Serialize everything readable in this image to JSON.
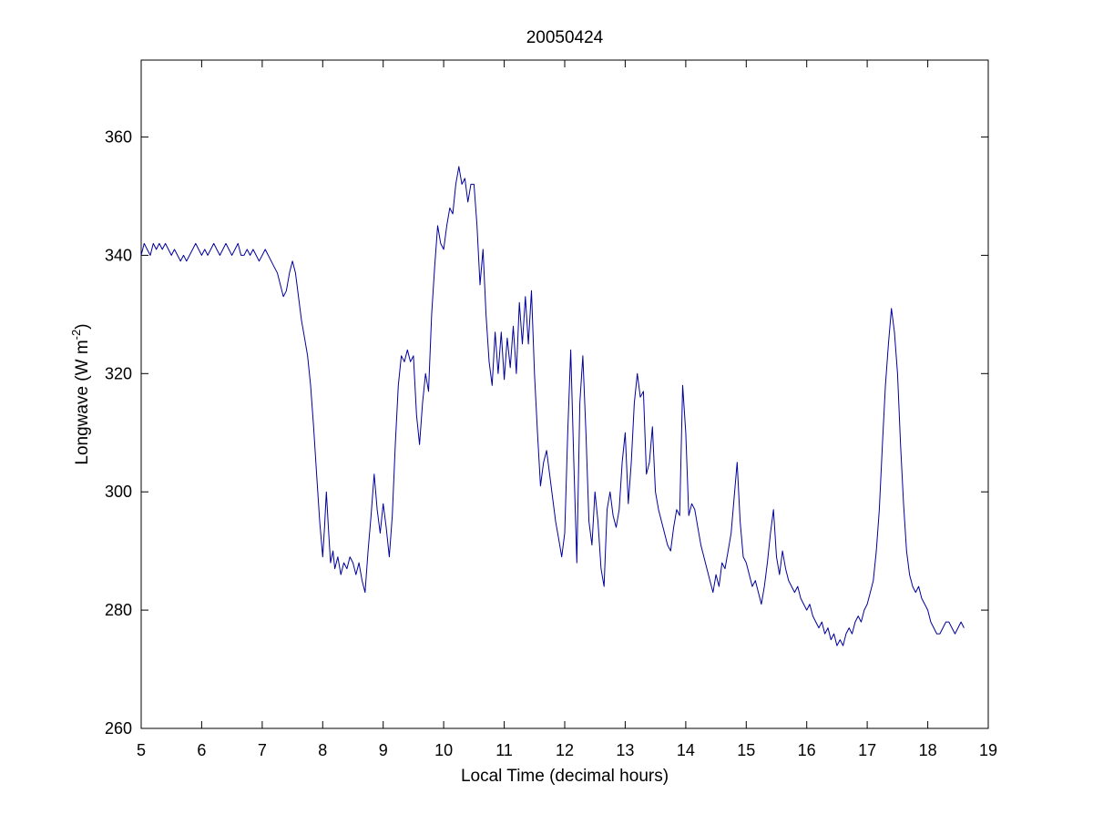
{
  "chart_data": {
    "type": "line",
    "title": "20050424",
    "xlabel": "Local Time (decimal hours)",
    "ylabel": "Longwave (W m-2)",
    "ylabel_parts": {
      "prefix": "Longwave (W m",
      "superscript": "-2",
      "suffix": ")"
    },
    "xlim": [
      5,
      19
    ],
    "ylim": [
      260,
      373
    ],
    "xticks": [
      5,
      6,
      7,
      8,
      9,
      10,
      11,
      12,
      13,
      14,
      15,
      16,
      17,
      18,
      19
    ],
    "yticks": [
      260,
      280,
      300,
      320,
      340,
      360
    ],
    "grid": false,
    "legend_position": "none",
    "line_color": "#00009C",
    "line_width": 1,
    "axis_color": "#000000",
    "background_color": "#ffffff",
    "series": [
      {
        "name": "longwave",
        "points": [
          [
            5.0,
            340
          ],
          [
            5.05,
            342
          ],
          [
            5.1,
            341
          ],
          [
            5.15,
            340
          ],
          [
            5.2,
            342
          ],
          [
            5.25,
            341
          ],
          [
            5.3,
            342
          ],
          [
            5.35,
            341
          ],
          [
            5.4,
            342
          ],
          [
            5.45,
            341
          ],
          [
            5.5,
            340
          ],
          [
            5.55,
            341
          ],
          [
            5.6,
            340
          ],
          [
            5.65,
            339
          ],
          [
            5.7,
            340
          ],
          [
            5.75,
            339
          ],
          [
            5.8,
            340
          ],
          [
            5.85,
            341
          ],
          [
            5.9,
            342
          ],
          [
            5.95,
            341
          ],
          [
            6.0,
            340
          ],
          [
            6.05,
            341
          ],
          [
            6.1,
            340
          ],
          [
            6.15,
            341
          ],
          [
            6.2,
            342
          ],
          [
            6.25,
            341
          ],
          [
            6.3,
            340
          ],
          [
            6.35,
            341
          ],
          [
            6.4,
            342
          ],
          [
            6.45,
            341
          ],
          [
            6.5,
            340
          ],
          [
            6.55,
            341
          ],
          [
            6.6,
            342
          ],
          [
            6.65,
            340
          ],
          [
            6.7,
            340
          ],
          [
            6.75,
            341
          ],
          [
            6.8,
            340
          ],
          [
            6.85,
            341
          ],
          [
            6.9,
            340
          ],
          [
            6.95,
            339
          ],
          [
            7.0,
            340
          ],
          [
            7.05,
            341
          ],
          [
            7.1,
            340
          ],
          [
            7.15,
            339
          ],
          [
            7.2,
            338
          ],
          [
            7.25,
            337
          ],
          [
            7.3,
            335
          ],
          [
            7.35,
            333
          ],
          [
            7.4,
            334
          ],
          [
            7.45,
            337
          ],
          [
            7.5,
            339
          ],
          [
            7.55,
            337
          ],
          [
            7.6,
            333
          ],
          [
            7.65,
            329
          ],
          [
            7.7,
            326
          ],
          [
            7.75,
            323
          ],
          [
            7.8,
            318
          ],
          [
            7.85,
            311
          ],
          [
            7.9,
            303
          ],
          [
            7.95,
            295
          ],
          [
            8.0,
            289
          ],
          [
            8.03,
            294
          ],
          [
            8.06,
            300
          ],
          [
            8.1,
            293
          ],
          [
            8.13,
            288
          ],
          [
            8.17,
            290
          ],
          [
            8.2,
            287
          ],
          [
            8.25,
            289
          ],
          [
            8.3,
            286
          ],
          [
            8.35,
            288
          ],
          [
            8.4,
            287
          ],
          [
            8.45,
            289
          ],
          [
            8.5,
            288
          ],
          [
            8.55,
            286
          ],
          [
            8.6,
            288
          ],
          [
            8.65,
            285
          ],
          [
            8.7,
            283
          ],
          [
            8.75,
            290
          ],
          [
            8.8,
            296
          ],
          [
            8.85,
            303
          ],
          [
            8.9,
            297
          ],
          [
            8.95,
            293
          ],
          [
            9.0,
            298
          ],
          [
            9.05,
            294
          ],
          [
            9.1,
            289
          ],
          [
            9.15,
            296
          ],
          [
            9.2,
            308
          ],
          [
            9.25,
            318
          ],
          [
            9.3,
            323
          ],
          [
            9.35,
            322
          ],
          [
            9.4,
            324
          ],
          [
            9.45,
            322
          ],
          [
            9.5,
            323
          ],
          [
            9.55,
            313
          ],
          [
            9.6,
            308
          ],
          [
            9.65,
            315
          ],
          [
            9.7,
            320
          ],
          [
            9.75,
            317
          ],
          [
            9.8,
            330
          ],
          [
            9.85,
            338
          ],
          [
            9.9,
            345
          ],
          [
            9.95,
            342
          ],
          [
            10.0,
            341
          ],
          [
            10.05,
            345
          ],
          [
            10.1,
            348
          ],
          [
            10.15,
            347
          ],
          [
            10.2,
            352
          ],
          [
            10.25,
            355
          ],
          [
            10.3,
            352
          ],
          [
            10.35,
            353
          ],
          [
            10.4,
            349
          ],
          [
            10.45,
            352
          ],
          [
            10.5,
            352
          ],
          [
            10.55,
            345
          ],
          [
            10.6,
            335
          ],
          [
            10.65,
            341
          ],
          [
            10.7,
            330
          ],
          [
            10.75,
            322
          ],
          [
            10.8,
            318
          ],
          [
            10.85,
            327
          ],
          [
            10.9,
            320
          ],
          [
            10.95,
            327
          ],
          [
            11.0,
            319
          ],
          [
            11.05,
            326
          ],
          [
            11.1,
            321
          ],
          [
            11.15,
            328
          ],
          [
            11.2,
            320
          ],
          [
            11.25,
            332
          ],
          [
            11.3,
            325
          ],
          [
            11.35,
            333
          ],
          [
            11.4,
            325
          ],
          [
            11.45,
            334
          ],
          [
            11.5,
            320
          ],
          [
            11.55,
            310
          ],
          [
            11.6,
            301
          ],
          [
            11.65,
            305
          ],
          [
            11.7,
            307
          ],
          [
            11.75,
            303
          ],
          [
            11.8,
            299
          ],
          [
            11.85,
            295
          ],
          [
            11.9,
            292
          ],
          [
            11.95,
            289
          ],
          [
            12.0,
            293
          ],
          [
            12.05,
            310
          ],
          [
            12.1,
            324
          ],
          [
            12.15,
            305
          ],
          [
            12.2,
            288
          ],
          [
            12.25,
            315
          ],
          [
            12.3,
            323
          ],
          [
            12.35,
            310
          ],
          [
            12.4,
            295
          ],
          [
            12.45,
            291
          ],
          [
            12.5,
            300
          ],
          [
            12.55,
            295
          ],
          [
            12.6,
            287
          ],
          [
            12.65,
            284
          ],
          [
            12.7,
            297
          ],
          [
            12.75,
            300
          ],
          [
            12.8,
            296
          ],
          [
            12.85,
            294
          ],
          [
            12.9,
            297
          ],
          [
            12.95,
            305
          ],
          [
            13.0,
            310
          ],
          [
            13.05,
            298
          ],
          [
            13.1,
            305
          ],
          [
            13.15,
            315
          ],
          [
            13.2,
            320
          ],
          [
            13.25,
            316
          ],
          [
            13.3,
            317
          ],
          [
            13.35,
            303
          ],
          [
            13.4,
            305
          ],
          [
            13.45,
            311
          ],
          [
            13.5,
            300
          ],
          [
            13.55,
            297
          ],
          [
            13.6,
            295
          ],
          [
            13.65,
            293
          ],
          [
            13.7,
            291
          ],
          [
            13.75,
            290
          ],
          [
            13.8,
            294
          ],
          [
            13.85,
            297
          ],
          [
            13.9,
            296
          ],
          [
            13.95,
            318
          ],
          [
            14.0,
            310
          ],
          [
            14.05,
            296
          ],
          [
            14.1,
            298
          ],
          [
            14.15,
            297
          ],
          [
            14.2,
            294
          ],
          [
            14.25,
            291
          ],
          [
            14.3,
            289
          ],
          [
            14.35,
            287
          ],
          [
            14.4,
            285
          ],
          [
            14.45,
            283
          ],
          [
            14.5,
            286
          ],
          [
            14.55,
            284
          ],
          [
            14.6,
            288
          ],
          [
            14.65,
            287
          ],
          [
            14.7,
            290
          ],
          [
            14.75,
            293
          ],
          [
            14.8,
            299
          ],
          [
            14.85,
            305
          ],
          [
            14.9,
            295
          ],
          [
            14.95,
            289
          ],
          [
            15.0,
            288
          ],
          [
            15.05,
            286
          ],
          [
            15.1,
            284
          ],
          [
            15.15,
            285
          ],
          [
            15.2,
            283
          ],
          [
            15.25,
            281
          ],
          [
            15.3,
            284
          ],
          [
            15.35,
            288
          ],
          [
            15.4,
            293
          ],
          [
            15.45,
            297
          ],
          [
            15.5,
            289
          ],
          [
            15.55,
            286
          ],
          [
            15.6,
            290
          ],
          [
            15.65,
            287
          ],
          [
            15.7,
            285
          ],
          [
            15.75,
            284
          ],
          [
            15.8,
            283
          ],
          [
            15.85,
            284
          ],
          [
            15.9,
            282
          ],
          [
            15.95,
            281
          ],
          [
            16.0,
            280
          ],
          [
            16.05,
            281
          ],
          [
            16.1,
            279
          ],
          [
            16.15,
            278
          ],
          [
            16.2,
            277
          ],
          [
            16.25,
            278
          ],
          [
            16.3,
            276
          ],
          [
            16.35,
            277
          ],
          [
            16.4,
            275
          ],
          [
            16.45,
            276
          ],
          [
            16.5,
            274
          ],
          [
            16.55,
            275
          ],
          [
            16.6,
            274
          ],
          [
            16.65,
            276
          ],
          [
            16.7,
            277
          ],
          [
            16.75,
            276
          ],
          [
            16.8,
            278
          ],
          [
            16.85,
            279
          ],
          [
            16.9,
            278
          ],
          [
            16.95,
            280
          ],
          [
            17.0,
            281
          ],
          [
            17.05,
            283
          ],
          [
            17.1,
            285
          ],
          [
            17.15,
            290
          ],
          [
            17.2,
            297
          ],
          [
            17.25,
            308
          ],
          [
            17.3,
            318
          ],
          [
            17.35,
            325
          ],
          [
            17.4,
            331
          ],
          [
            17.45,
            327
          ],
          [
            17.5,
            320
          ],
          [
            17.55,
            308
          ],
          [
            17.6,
            298
          ],
          [
            17.65,
            290
          ],
          [
            17.7,
            286
          ],
          [
            17.75,
            284
          ],
          [
            17.8,
            283
          ],
          [
            17.85,
            284
          ],
          [
            17.9,
            282
          ],
          [
            17.95,
            281
          ],
          [
            18.0,
            280
          ],
          [
            18.05,
            278
          ],
          [
            18.1,
            277
          ],
          [
            18.15,
            276
          ],
          [
            18.2,
            276
          ],
          [
            18.25,
            277
          ],
          [
            18.3,
            278
          ],
          [
            18.35,
            278
          ],
          [
            18.4,
            277
          ],
          [
            18.45,
            276
          ],
          [
            18.5,
            277
          ],
          [
            18.55,
            278
          ],
          [
            18.6,
            277
          ]
        ]
      }
    ]
  }
}
